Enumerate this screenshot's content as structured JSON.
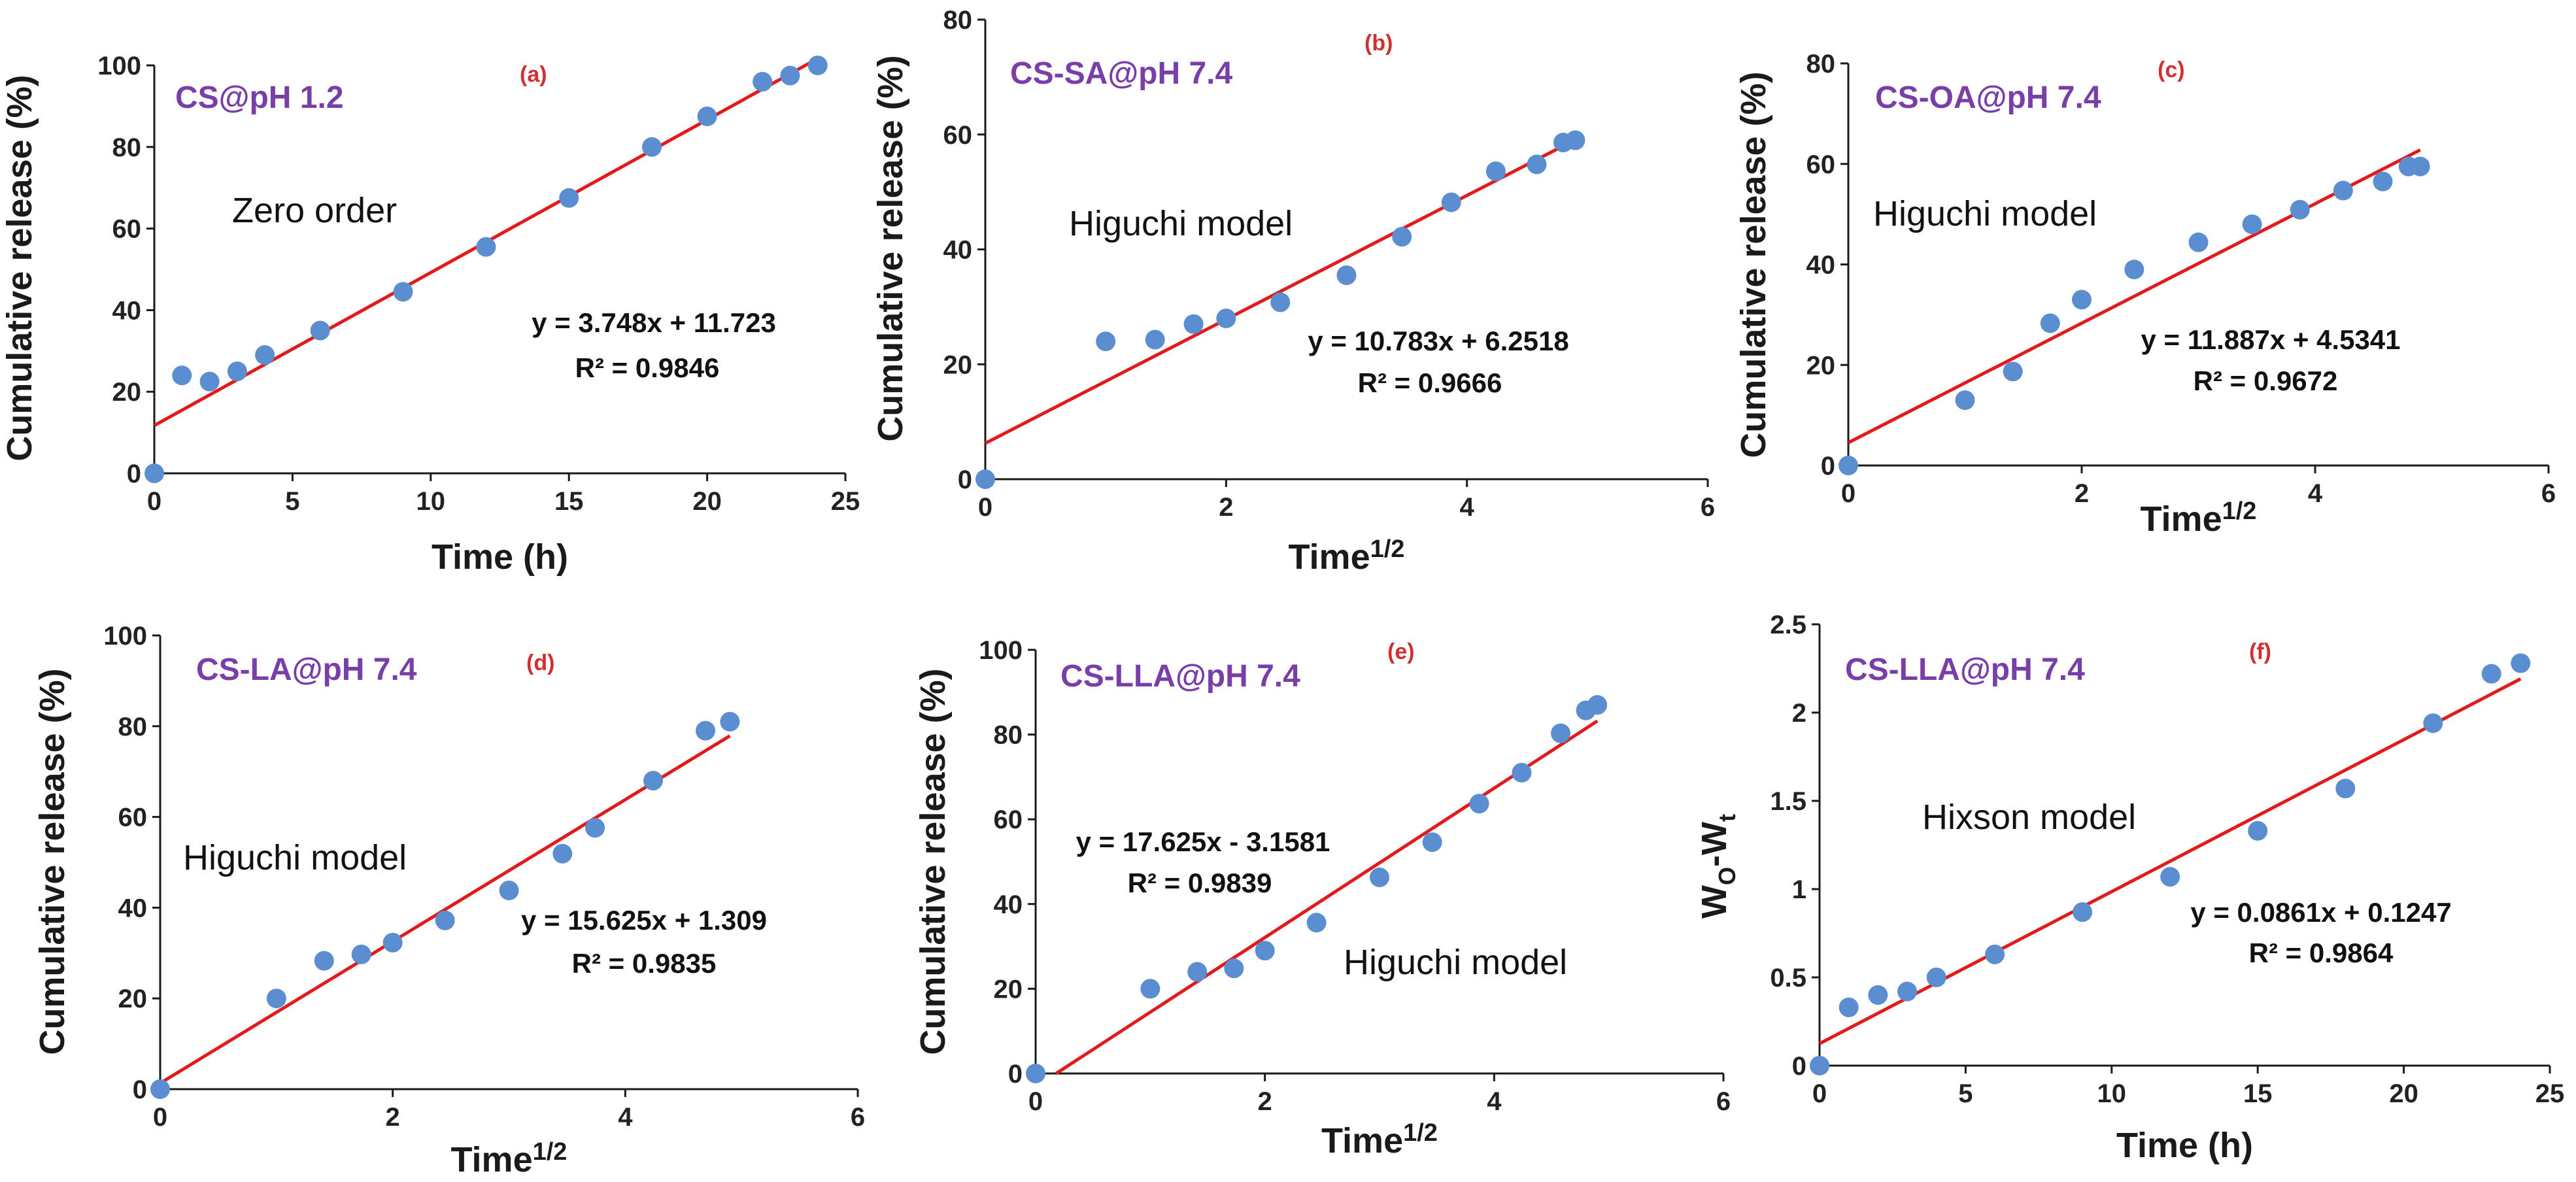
{
  "chart_data": [
    {
      "id": "a",
      "type": "scatter",
      "letter": "(a)",
      "tag": "CS@pH 1.2",
      "model": "Zero order",
      "equation": "y = 3.748x + 11.723",
      "r2": "R² = 0.9846",
      "xlabel": "Time (h)",
      "xlabel_sup": "",
      "ylabel": "Cumulative release (%)",
      "xlim": [
        0,
        25
      ],
      "ylim": [
        0,
        100
      ],
      "xticks": [
        0,
        5,
        10,
        15,
        20,
        25
      ],
      "yticks": [
        0,
        20,
        40,
        60,
        80,
        100
      ],
      "fit": {
        "slope": 3.748,
        "intercept": 11.723,
        "x0": 0,
        "x1": 24
      },
      "x": [
        0,
        1,
        2,
        3,
        4,
        6,
        9,
        12,
        15,
        18,
        20,
        22,
        23,
        24
      ],
      "y": [
        0,
        24,
        22.5,
        25,
        29,
        35,
        44.5,
        55.5,
        67.5,
        80,
        87.5,
        96,
        97.5,
        100
      ]
    },
    {
      "id": "b",
      "type": "scatter",
      "letter": "(b)",
      "tag": "CS-SA@pH 7.4",
      "model": "Higuchi model",
      "equation": "y = 10.783x + 6.2518",
      "r2": "R² = 0.9666",
      "xlabel": "Time",
      "xlabel_sup": "1/2",
      "ylabel": "Cumulative release (%)",
      "xlim": [
        0,
        6
      ],
      "ylim": [
        0,
        80
      ],
      "xticks": [
        0,
        2,
        4,
        6
      ],
      "yticks": [
        0,
        20,
        40,
        60,
        80
      ],
      "fit": {
        "slope": 10.783,
        "intercept": 6.2518,
        "x0": 0,
        "x1": 4.9
      },
      "x": [
        0,
        1,
        1.41,
        1.73,
        2,
        2.45,
        3,
        3.46,
        3.87,
        4.24,
        4.58,
        4.8,
        4.9
      ],
      "y": [
        0,
        24,
        24.3,
        27,
        28,
        30.8,
        35.5,
        42.2,
        48.2,
        53.6,
        54.8,
        58.6,
        59
      ]
    },
    {
      "id": "c",
      "type": "scatter",
      "letter": "(c)",
      "tag": "CS-OA@pH 7.4",
      "model": "Higuchi model",
      "equation": "y = 11.887x + 4.5341",
      "r2": "R² = 0.9672",
      "xlabel": "Time",
      "xlabel_sup": "1/2",
      "ylabel": "Cumulative release (%)",
      "xlim": [
        0,
        6
      ],
      "ylim": [
        0,
        80
      ],
      "xticks": [
        0,
        2,
        4,
        6
      ],
      "yticks": [
        0,
        20,
        40,
        60,
        80
      ],
      "fit": {
        "slope": 11.887,
        "intercept": 4.5341,
        "x0": 0,
        "x1": 4.9
      },
      "x": [
        0,
        1,
        1.41,
        1.73,
        2,
        2.45,
        3,
        3.46,
        3.87,
        4.24,
        4.58,
        4.8,
        4.9
      ],
      "y": [
        0,
        13,
        18.7,
        28.3,
        33,
        39,
        44.4,
        48,
        50.9,
        54.7,
        56.5,
        59.5,
        59.5
      ]
    },
    {
      "id": "d",
      "type": "scatter",
      "letter": "(d)",
      "tag": "CS-LA@pH 7.4",
      "model": "Higuchi model",
      "equation": "y = 15.625x + 1.309",
      "r2": "R² = 0.9835",
      "xlabel": "Time",
      "xlabel_sup": "1/2",
      "ylabel": "Cumulative release (%)",
      "xlim": [
        0,
        6
      ],
      "ylim": [
        0,
        100
      ],
      "xticks": [
        0,
        2,
        4,
        6
      ],
      "yticks": [
        0,
        20,
        40,
        60,
        80,
        100
      ],
      "fit": {
        "slope": 15.625,
        "intercept": 1.309,
        "x0": 0,
        "x1": 4.9
      },
      "x": [
        0,
        1,
        1.41,
        1.73,
        2,
        2.45,
        3,
        3.46,
        3.74,
        4.24,
        4.69,
        4.9
      ],
      "y": [
        0,
        20,
        28.3,
        29.7,
        32.3,
        37.2,
        43.8,
        51.9,
        57.6,
        68,
        79,
        81
      ]
    },
    {
      "id": "e",
      "type": "scatter",
      "letter": "(e)",
      "tag": "CS-LLA@pH 7.4",
      "model": "Higuchi model",
      "equation": "y = 17.625x - 3.1581",
      "r2": "R² = 0.9839",
      "xlabel": "Time",
      "xlabel_sup": "1/2",
      "ylabel": "Cumulative release (%)",
      "xlim": [
        0,
        6
      ],
      "ylim": [
        0,
        100
      ],
      "xticks": [
        0,
        2,
        4,
        6
      ],
      "yticks": [
        0,
        20,
        40,
        60,
        80,
        100
      ],
      "fit": {
        "slope": 17.625,
        "intercept": -3.1581,
        "x0": 0,
        "x1": 4.9
      },
      "x": [
        0,
        1,
        1.41,
        1.73,
        2,
        2.45,
        3,
        3.46,
        3.87,
        4.24,
        4.58,
        4.8,
        4.9
      ],
      "y": [
        0,
        20,
        24,
        24.8,
        29,
        35.6,
        46.3,
        54.6,
        63.7,
        71,
        80.3,
        85.7,
        87
      ]
    },
    {
      "id": "f",
      "type": "scatter",
      "letter": "(f)",
      "tag": "CS-LLA@pH 7.4",
      "model": "Hixson model",
      "equation": "y = 0.0861x + 0.1247",
      "r2": "R² = 0.9864",
      "xlabel": "Time (h)",
      "xlabel_sup": "",
      "ylabel": "W",
      "ylabel_sub0": "O",
      "ylabel_mid": "-W",
      "ylabel_sub1": "t",
      "xlim": [
        0,
        25
      ],
      "ylim": [
        0,
        2.5
      ],
      "xticks": [
        0,
        5,
        10,
        15,
        20,
        25
      ],
      "yticks": [
        0,
        0.5,
        1,
        1.5,
        2,
        2.5
      ],
      "fit": {
        "slope": 0.0861,
        "intercept": 0.1247,
        "x0": 0,
        "x1": 24
      },
      "x": [
        0,
        1,
        2,
        3,
        4,
        6,
        9,
        12,
        15,
        18,
        21,
        23,
        24
      ],
      "y": [
        0,
        0.33,
        0.4,
        0.42,
        0.5,
        0.63,
        0.87,
        1.07,
        1.33,
        1.57,
        1.94,
        2.22,
        2.28
      ]
    }
  ],
  "colors": {
    "point": "#5b8ed0",
    "fit": "#e31a1c",
    "axis": "#1a1a1a",
    "tag": "#7a3ea8",
    "letter": "#d23030"
  }
}
